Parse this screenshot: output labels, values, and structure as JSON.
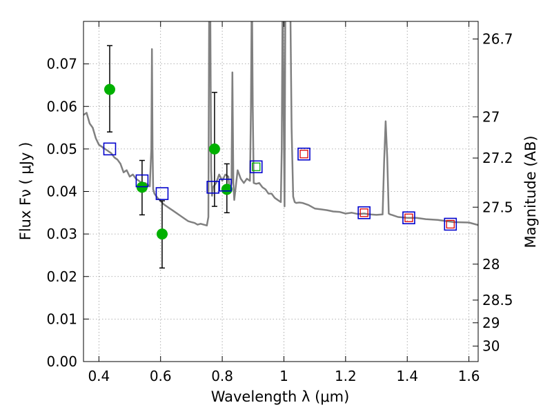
{
  "chart_data": {
    "type": "scatter",
    "xlabel": "Wavelength  λ (μm)",
    "ylabel": "Flux  Fν  ( μJy )",
    "y2label": "Magnitude (AB)",
    "xlim": [
      0.35,
      1.63
    ],
    "ylim": [
      0.0,
      0.08
    ],
    "grid": true,
    "x_ticks": [
      0.4,
      0.6,
      0.8,
      1.0,
      1.2,
      1.4,
      1.6
    ],
    "x_tick_labels": [
      "0.4",
      "0.6",
      "0.8",
      "1",
      "1.2",
      "1.4",
      "1.6"
    ],
    "y_ticks": [
      0.0,
      0.01,
      0.02,
      0.03,
      0.04,
      0.05,
      0.06,
      0.07
    ],
    "y_tick_labels": [
      "0.00",
      "0.01",
      "0.02",
      "0.03",
      "0.04",
      "0.05",
      "0.06",
      "0.07"
    ],
    "y2_ticks": [
      "26.7",
      "27",
      "27.2",
      "27.5",
      "28",
      "28.5",
      "29",
      "30"
    ],
    "colors": {
      "model": "#808080",
      "observed": "#00b000",
      "errorbar": "#000000",
      "synthetic_box": "#0000cc",
      "inner_green": "#00b000",
      "inner_red": "#dd0000",
      "grid": "#999999"
    },
    "model_spectrum": {
      "x": [
        0.35,
        0.36,
        0.37,
        0.38,
        0.39,
        0.4,
        0.41,
        0.42,
        0.43,
        0.44,
        0.45,
        0.46,
        0.47,
        0.48,
        0.49,
        0.5,
        0.51,
        0.52,
        0.53,
        0.54,
        0.55,
        0.56,
        0.565,
        0.57,
        0.572,
        0.574,
        0.576,
        0.58,
        0.59,
        0.6,
        0.61,
        0.62,
        0.63,
        0.64,
        0.65,
        0.66,
        0.67,
        0.68,
        0.69,
        0.7,
        0.71,
        0.72,
        0.73,
        0.74,
        0.75,
        0.755,
        0.758,
        0.761,
        0.764,
        0.767,
        0.77,
        0.78,
        0.79,
        0.8,
        0.81,
        0.82,
        0.825,
        0.83,
        0.833,
        0.836,
        0.839,
        0.842,
        0.85,
        0.86,
        0.87,
        0.88,
        0.89,
        0.893,
        0.896,
        0.899,
        0.902,
        0.91,
        0.92,
        0.93,
        0.94,
        0.95,
        0.96,
        0.97,
        0.98,
        0.99,
        0.993,
        0.996,
        0.999,
        1.002,
        1.005,
        1.01,
        1.015,
        1.02,
        1.025,
        1.03,
        1.035,
        1.04,
        1.05,
        1.06,
        1.08,
        1.1,
        1.12,
        1.14,
        1.16,
        1.18,
        1.2,
        1.22,
        1.24,
        1.26,
        1.28,
        1.3,
        1.32,
        1.325,
        1.33,
        1.335,
        1.34,
        1.345,
        1.35,
        1.37,
        1.4,
        1.43,
        1.46,
        1.5,
        1.55,
        1.6,
        1.63
      ],
      "y": [
        0.058,
        0.0585,
        0.056,
        0.055,
        0.0525,
        0.051,
        0.0505,
        0.05,
        0.0495,
        0.049,
        0.048,
        0.0475,
        0.0465,
        0.0445,
        0.045,
        0.0435,
        0.044,
        0.043,
        0.0425,
        0.042,
        0.042,
        0.0415,
        0.0412,
        0.05,
        0.0735,
        0.05,
        0.0405,
        0.0395,
        0.0385,
        0.0378,
        0.037,
        0.0365,
        0.036,
        0.0355,
        0.035,
        0.0345,
        0.034,
        0.0335,
        0.033,
        0.0328,
        0.0326,
        0.0322,
        0.0324,
        0.0322,
        0.032,
        0.034,
        0.09,
        0.085,
        0.045,
        0.039,
        0.041,
        0.042,
        0.044,
        0.0425,
        0.044,
        0.0435,
        0.04,
        0.042,
        0.068,
        0.042,
        0.038,
        0.04,
        0.045,
        0.043,
        0.042,
        0.043,
        0.0425,
        0.06,
        0.09,
        0.06,
        0.042,
        0.0418,
        0.042,
        0.041,
        0.0405,
        0.0395,
        0.0395,
        0.0385,
        0.038,
        0.0375,
        0.05,
        0.09,
        0.06,
        0.0365,
        0.09,
        0.09,
        0.09,
        0.09,
        0.055,
        0.0388,
        0.0375,
        0.0373,
        0.0374,
        0.0373,
        0.0368,
        0.036,
        0.0358,
        0.0356,
        0.0353,
        0.0352,
        0.0348,
        0.035,
        0.0347,
        0.0348,
        0.0346,
        0.0345,
        0.0346,
        0.047,
        0.0565,
        0.048,
        0.0348,
        0.0346,
        0.0345,
        0.034,
        0.0338,
        0.0338,
        0.0335,
        0.0333,
        0.0328,
        0.0327,
        0.0321
      ]
    },
    "observed_points": [
      {
        "x": 0.435,
        "y": 0.064,
        "yerr": [
          0.054,
          0.0743
        ]
      },
      {
        "x": 0.54,
        "y": 0.041,
        "yerr": [
          0.0345,
          0.0473
        ]
      },
      {
        "x": 0.605,
        "y": 0.03,
        "yerr": [
          0.022,
          0.0378
        ]
      },
      {
        "x": 0.775,
        "y": 0.05,
        "yerr": [
          0.0365,
          0.0633
        ]
      },
      {
        "x": 0.815,
        "y": 0.0405,
        "yerr": [
          0.035,
          0.0465
        ]
      }
    ],
    "synthetic_points": [
      {
        "x": 0.435,
        "y": 0.05,
        "inner": "none"
      },
      {
        "x": 0.54,
        "y": 0.0425,
        "inner": "none"
      },
      {
        "x": 0.605,
        "y": 0.0395,
        "inner": "none"
      },
      {
        "x": 0.77,
        "y": 0.041,
        "inner": "none"
      },
      {
        "x": 0.81,
        "y": 0.0415,
        "inner": "none"
      },
      {
        "x": 0.91,
        "y": 0.0458,
        "inner": "green"
      },
      {
        "x": 1.065,
        "y": 0.0488,
        "inner": "red"
      },
      {
        "x": 1.26,
        "y": 0.035,
        "inner": "red"
      },
      {
        "x": 1.405,
        "y": 0.0338,
        "inner": "red"
      },
      {
        "x": 1.54,
        "y": 0.0323,
        "inner": "red"
      }
    ]
  }
}
